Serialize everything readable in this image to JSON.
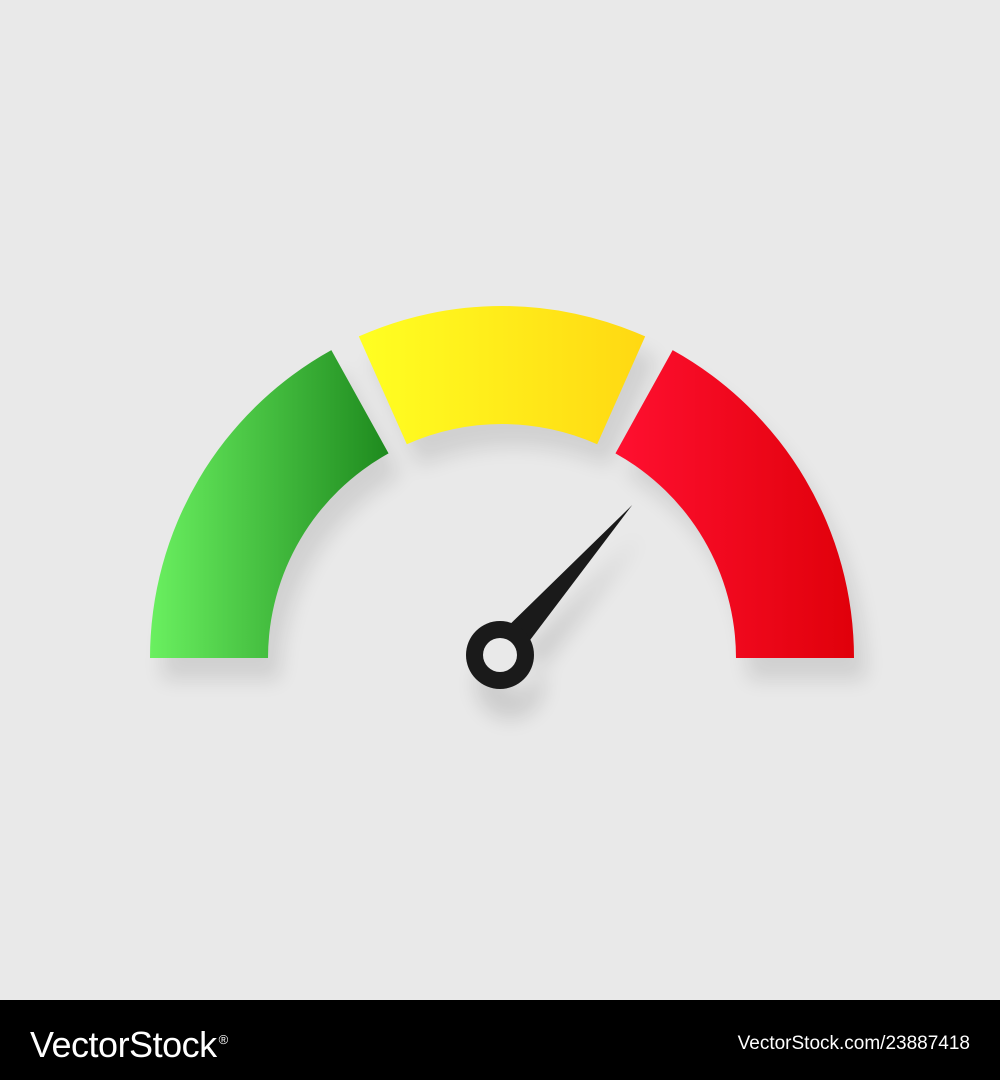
{
  "gauge": {
    "value_fraction": 0.73,
    "segments": [
      {
        "name": "green",
        "color_light": "#6af060",
        "color_dark": "#1e8a1e"
      },
      {
        "name": "yellow",
        "color_light": "#ffff22",
        "color_dark": "#ffd812"
      },
      {
        "name": "red",
        "color_light": "#ff1030",
        "color_dark": "#e0000a"
      }
    ],
    "needle_color": "#1a1a1a",
    "background_color": "#e9e9e9"
  },
  "footer": {
    "brand_text": "VectorStock",
    "brand_mark": "®",
    "image_id_text": "VectorStock.com/23887418",
    "background_color": "#000000",
    "text_color": "#ffffff"
  }
}
